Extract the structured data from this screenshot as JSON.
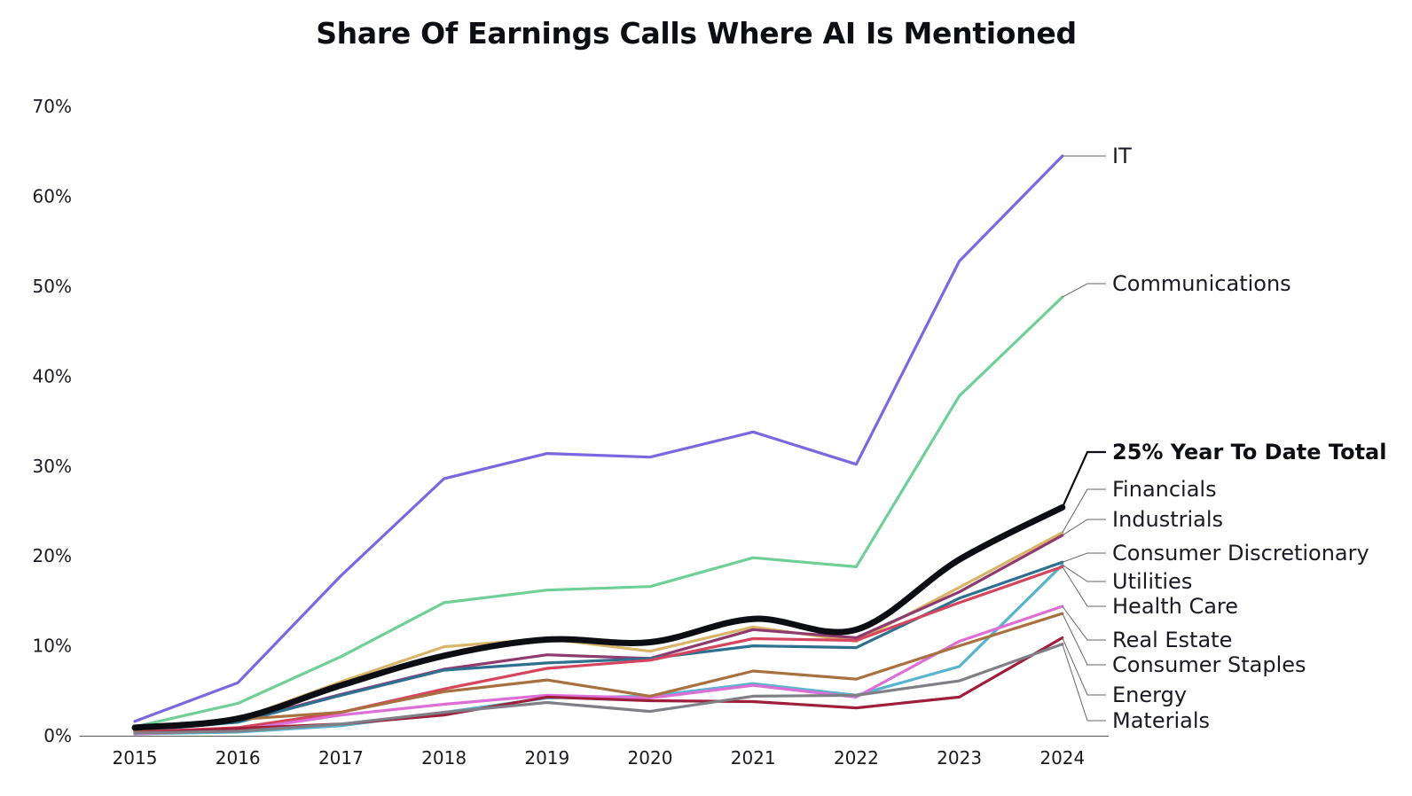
{
  "chart_data": {
    "type": "line",
    "title": "Share Of Earnings Calls Where AI Is Mentioned",
    "xlabel": "",
    "ylabel": "",
    "x": [
      "2015",
      "2016",
      "2017",
      "2018",
      "2019",
      "2020",
      "2021",
      "2022",
      "2023",
      "2024"
    ],
    "ylim": [
      0,
      70
    ],
    "yticks": [
      0,
      10,
      20,
      30,
      40,
      50,
      60,
      70
    ],
    "ytick_labels": [
      "0%",
      "10%",
      "20%",
      "30%",
      "40%",
      "50%",
      "60%",
      "70%"
    ],
    "grid": false,
    "legend": "direct labels at right end of lines",
    "series": [
      {
        "name": "IT",
        "color": "#7b68e0",
        "values": [
          1.6,
          5.9,
          17.8,
          28.6,
          31.4,
          31.0,
          33.8,
          30.2,
          52.8,
          64.5
        ]
      },
      {
        "name": "Communications",
        "color": "#6fcf97",
        "values": [
          1.0,
          3.6,
          8.8,
          14.8,
          16.2,
          16.6,
          19.8,
          18.8,
          37.8,
          48.8
        ]
      },
      {
        "name": "Financials",
        "color": "#d9b56a",
        "values": [
          0.7,
          1.8,
          6.0,
          9.9,
          10.8,
          9.4,
          12.1,
          10.5,
          16.5,
          22.6
        ]
      },
      {
        "name": "Industrials",
        "color": "#8e3a6e",
        "values": [
          0.6,
          1.6,
          4.6,
          7.4,
          9.0,
          8.6,
          11.8,
          10.9,
          16.0,
          22.3
        ]
      },
      {
        "name": "Consumer Discretionary",
        "color": "#2f6f8f",
        "values": [
          0.5,
          1.5,
          4.5,
          7.3,
          8.1,
          8.6,
          10.0,
          9.8,
          15.3,
          19.3
        ]
      },
      {
        "name": "Utilities",
        "color": "#58b4cc",
        "values": [
          0.2,
          0.4,
          1.1,
          2.6,
          4.2,
          4.4,
          5.8,
          4.5,
          7.7,
          19.0
        ]
      },
      {
        "name": "Health Care",
        "color": "#d6455e",
        "values": [
          0.4,
          0.9,
          2.6,
          5.2,
          7.5,
          8.4,
          10.8,
          10.6,
          14.8,
          18.8
        ]
      },
      {
        "name": "Real Estate",
        "color": "#dd6ed8",
        "values": [
          0.2,
          0.6,
          2.3,
          3.5,
          4.5,
          4.2,
          5.6,
          4.3,
          10.5,
          14.4
        ]
      },
      {
        "name": "Consumer Staples",
        "color": "#a8703f",
        "values": [
          0.6,
          1.8,
          2.6,
          4.9,
          6.2,
          4.4,
          7.2,
          6.3,
          10.0,
          13.6
        ]
      },
      {
        "name": "Energy",
        "color": "#9e1f3c",
        "values": [
          0.3,
          0.8,
          1.3,
          2.3,
          4.3,
          3.9,
          3.8,
          3.1,
          4.3,
          10.9
        ]
      },
      {
        "name": "Materials",
        "color": "#7f7f86",
        "values": [
          0.3,
          0.5,
          1.3,
          2.6,
          3.7,
          2.7,
          4.4,
          4.5,
          6.1,
          10.2
        ]
      },
      {
        "name": "25% Year To Date Total",
        "color": "#0d0d14",
        "values": [
          0.9,
          1.9,
          5.6,
          8.9,
          10.7,
          10.4,
          13.0,
          11.8,
          19.6,
          25.4
        ]
      }
    ]
  }
}
